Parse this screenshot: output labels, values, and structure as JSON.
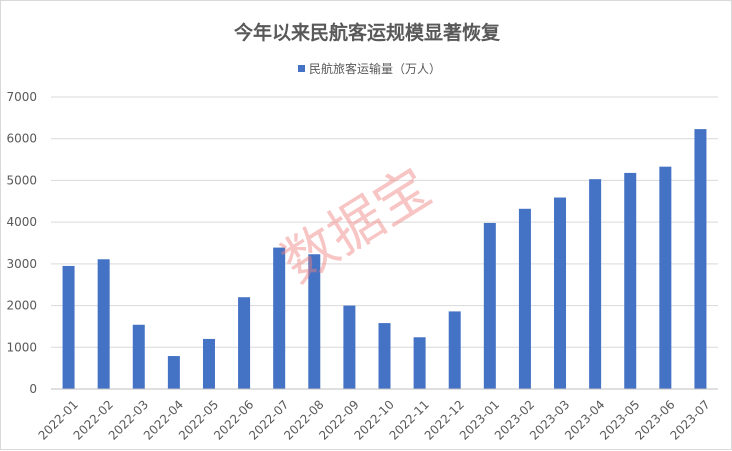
{
  "chart_data": {
    "type": "bar",
    "title": "今年以来民航客运规模显著恢复",
    "xlabel": "",
    "ylabel": "",
    "ylim": [
      0,
      7000
    ],
    "yticks": [
      0,
      1000,
      2000,
      3000,
      4000,
      5000,
      6000,
      7000
    ],
    "grid": true,
    "legend_position": "top",
    "categories": [
      "2022-01",
      "2022-02",
      "2022-03",
      "2022-04",
      "2022-05",
      "2022-06",
      "2022-07",
      "2022-08",
      "2022-09",
      "2022-10",
      "2022-11",
      "2022-12",
      "2023-01",
      "2023-02",
      "2023-03",
      "2023-04",
      "2023-05",
      "2023-06",
      "2023-07"
    ],
    "series": [
      {
        "name": "民航旅客运输量（万人）",
        "color": "#4472c4",
        "values": [
          2950,
          3110,
          1540,
          790,
          1200,
          2200,
          3390,
          3230,
          2000,
          1580,
          1240,
          1860,
          3980,
          4320,
          4590,
          5030,
          5180,
          5330,
          6230
        ]
      }
    ]
  },
  "watermark": "数据宝"
}
